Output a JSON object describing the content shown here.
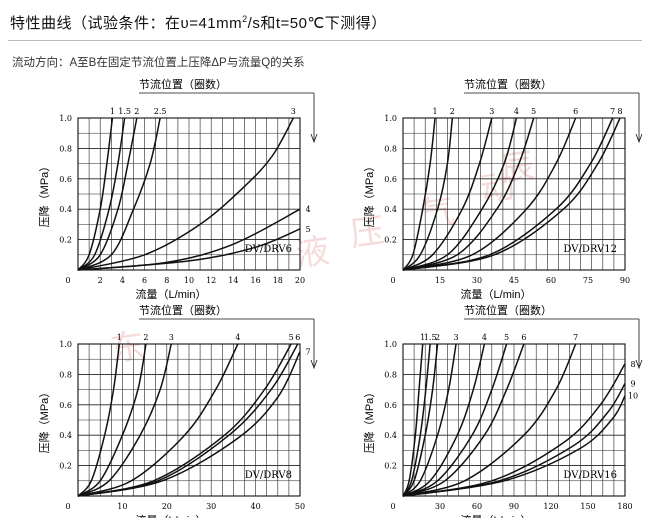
{
  "title": {
    "prefix": "特性曲线（试验条件：在υ=41mm",
    "sup": "2",
    "suffix": "/s和t=50℃下测得）"
  },
  "subtitle": "流动方向：A至B在固定节流位置上压降ΔP与流量Q的关系",
  "watermark": [
    "辰",
    "液",
    "压",
    "气",
    "动",
    "东"
  ],
  "colors": {
    "line": "#111111",
    "grid": "#111111",
    "watermark": "#d75a5a"
  },
  "chart_data": [
    {
      "type": "line",
      "model": "DV/DRV6",
      "xlabel": "流量（L/min）",
      "ylabel": "压降（MPa）",
      "header": "节流位置（圈数）",
      "xlim": [
        0,
        20
      ],
      "ylim": [
        0,
        1.0
      ],
      "x_ticks": [
        "0",
        "2",
        "4",
        "6",
        "8",
        "10",
        "12",
        "14",
        "16",
        "18",
        "20"
      ],
      "y_ticks": [
        "0.2",
        "0.4",
        "0.6",
        "0.8",
        "1.0"
      ],
      "series": [
        {
          "name": "1",
          "x": [
            0,
            1.0,
            2.0,
            2.6,
            3.1
          ],
          "y": [
            0,
            0.1,
            0.4,
            0.7,
            1.0
          ]
        },
        {
          "name": "1.5",
          "x": [
            0,
            1.5,
            2.8,
            3.6,
            4.2
          ],
          "y": [
            0,
            0.1,
            0.4,
            0.7,
            1.0
          ]
        },
        {
          "name": "2",
          "x": [
            0,
            2.0,
            3.6,
            4.5,
            5.3
          ],
          "y": [
            0,
            0.1,
            0.4,
            0.7,
            1.0
          ]
        },
        {
          "name": "2.5",
          "x": [
            0,
            3.0,
            5.0,
            6.5,
            7.4
          ],
          "y": [
            0,
            0.1,
            0.4,
            0.7,
            1.0
          ]
        },
        {
          "name": "3",
          "x": [
            0,
            6,
            11,
            15,
            17.5,
            19.4
          ],
          "y": [
            0,
            0.1,
            0.3,
            0.55,
            0.75,
            1.0
          ]
        },
        {
          "name": "4",
          "x": [
            0,
            8,
            14,
            20
          ],
          "y": [
            0,
            0.05,
            0.17,
            0.4
          ]
        },
        {
          "name": "5",
          "x": [
            0,
            10,
            16,
            20
          ],
          "y": [
            0,
            0.06,
            0.15,
            0.27
          ]
        }
      ]
    },
    {
      "type": "line",
      "model": "DV/DRV12",
      "xlabel": "流量（L/min）",
      "ylabel": "压降（MPa）",
      "header": "节流位置（圈数）",
      "xlim": [
        0,
        90
      ],
      "ylim": [
        0,
        1.0
      ],
      "x_ticks": [
        "0",
        "15",
        "30",
        "45",
        "60",
        "75",
        "90"
      ],
      "y_ticks": [
        "0.2",
        "0.4",
        "0.6",
        "0.8",
        "1.0"
      ],
      "series": [
        {
          "name": "1",
          "x": [
            0,
            4,
            8,
            11,
            13
          ],
          "y": [
            0,
            0.1,
            0.4,
            0.7,
            1.0
          ]
        },
        {
          "name": "2",
          "x": [
            0,
            7,
            14,
            18,
            20
          ],
          "y": [
            0,
            0.1,
            0.4,
            0.7,
            1.0
          ]
        },
        {
          "name": "3",
          "x": [
            0,
            12,
            24,
            31,
            36
          ],
          "y": [
            0,
            0.1,
            0.4,
            0.7,
            1.0
          ]
        },
        {
          "name": "4",
          "x": [
            0,
            18,
            32,
            41,
            46
          ],
          "y": [
            0,
            0.1,
            0.4,
            0.7,
            1.0
          ]
        },
        {
          "name": "5",
          "x": [
            0,
            22,
            38,
            47,
            53
          ],
          "y": [
            0,
            0.1,
            0.4,
            0.7,
            1.0
          ]
        },
        {
          "name": "6",
          "x": [
            0,
            28,
            50,
            62,
            70
          ],
          "y": [
            0,
            0.1,
            0.4,
            0.7,
            1.0
          ]
        },
        {
          "name": "7",
          "x": [
            0,
            35,
            62,
            76,
            85
          ],
          "y": [
            0,
            0.1,
            0.4,
            0.7,
            1.0
          ]
        },
        {
          "name": "8",
          "x": [
            0,
            37,
            65,
            79,
            88
          ],
          "y": [
            0,
            0.1,
            0.4,
            0.7,
            1.0
          ]
        }
      ]
    },
    {
      "type": "line",
      "model": "DV/DRV8",
      "xlabel": "流量（L/min）",
      "ylabel": "压降（MPa）",
      "header": "节流位置（圈数）",
      "xlim": [
        0,
        50
      ],
      "ylim": [
        0,
        1.0
      ],
      "x_ticks": [
        "0",
        "10",
        "20",
        "30",
        "40",
        "50"
      ],
      "y_ticks": [
        "0.2",
        "0.4",
        "0.6",
        "0.8",
        "1.0"
      ],
      "series": [
        {
          "name": "1",
          "x": [
            0,
            3,
            6,
            8,
            9.3
          ],
          "y": [
            0,
            0.1,
            0.4,
            0.7,
            1.0
          ]
        },
        {
          "name": "2",
          "x": [
            0,
            5,
            10,
            13.5,
            15.3
          ],
          "y": [
            0,
            0.1,
            0.4,
            0.7,
            1.0
          ]
        },
        {
          "name": "3",
          "x": [
            0,
            7,
            14,
            18.5,
            21
          ],
          "y": [
            0,
            0.1,
            0.4,
            0.7,
            1.0
          ]
        },
        {
          "name": "4",
          "x": [
            0,
            12,
            24,
            31,
            36
          ],
          "y": [
            0,
            0.1,
            0.4,
            0.7,
            1.0
          ]
        },
        {
          "name": "5",
          "x": [
            0,
            17,
            33,
            42,
            48
          ],
          "y": [
            0,
            0.1,
            0.4,
            0.7,
            1.0
          ]
        },
        {
          "name": "6",
          "x": [
            0,
            18,
            34,
            43.5,
            49.5
          ],
          "y": [
            0,
            0.1,
            0.4,
            0.7,
            1.0
          ]
        },
        {
          "name": "7",
          "x": [
            0,
            19,
            36,
            45,
            50
          ],
          "y": [
            0,
            0.1,
            0.38,
            0.65,
            0.95
          ]
        }
      ]
    },
    {
      "type": "line",
      "model": "DV/DRV16",
      "xlabel": "流量（L/min）",
      "ylabel": "压降（MPa）",
      "header": "节流位置（圈数）",
      "xlim": [
        0,
        180
      ],
      "ylim": [
        0,
        1.0
      ],
      "x_ticks": [
        "0",
        "30",
        "60",
        "90",
        "120",
        "150",
        "180"
      ],
      "y_ticks": [
        "0.2",
        "0.4",
        "0.6",
        "0.8",
        "1.0"
      ],
      "series": [
        {
          "name": "1",
          "x": [
            0,
            5,
            10,
            13,
            16
          ],
          "y": [
            0,
            0.1,
            0.4,
            0.7,
            1.0
          ]
        },
        {
          "name": "1.5",
          "x": [
            0,
            7,
            14,
            18.5,
            22
          ],
          "y": [
            0,
            0.1,
            0.4,
            0.7,
            1.0
          ]
        },
        {
          "name": "2",
          "x": [
            0,
            9,
            18,
            24,
            28
          ],
          "y": [
            0,
            0.1,
            0.4,
            0.7,
            1.0
          ]
        },
        {
          "name": "3",
          "x": [
            0,
            14,
            28,
            37,
            43
          ],
          "y": [
            0,
            0.1,
            0.4,
            0.7,
            1.0
          ]
        },
        {
          "name": "4",
          "x": [
            0,
            22,
            44,
            57,
            66
          ],
          "y": [
            0,
            0.1,
            0.4,
            0.7,
            1.0
          ]
        },
        {
          "name": "5",
          "x": [
            0,
            28,
            56,
            72,
            84
          ],
          "y": [
            0,
            0.1,
            0.4,
            0.7,
            1.0
          ]
        },
        {
          "name": "6",
          "x": [
            0,
            34,
            66,
            84,
            98
          ],
          "y": [
            0,
            0.1,
            0.4,
            0.7,
            1.0
          ]
        },
        {
          "name": "7",
          "x": [
            0,
            50,
            98,
            124,
            140
          ],
          "y": [
            0,
            0.1,
            0.4,
            0.7,
            1.0
          ]
        },
        {
          "name": "8",
          "x": [
            0,
            72,
            130,
            160,
            180
          ],
          "y": [
            0,
            0.1,
            0.35,
            0.6,
            0.87
          ]
        },
        {
          "name": "9",
          "x": [
            0,
            78,
            138,
            166,
            180
          ],
          "y": [
            0,
            0.1,
            0.33,
            0.55,
            0.74
          ]
        },
        {
          "name": "10",
          "x": [
            0,
            82,
            143,
            170,
            180
          ],
          "y": [
            0,
            0.1,
            0.31,
            0.51,
            0.66
          ]
        }
      ]
    }
  ]
}
